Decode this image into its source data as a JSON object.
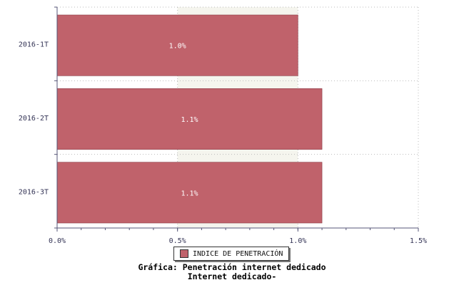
{
  "chart_data": {
    "type": "bar",
    "orientation": "horizontal",
    "categories": [
      "2016-1T",
      "2016-2T",
      "2016-3T"
    ],
    "series": [
      {
        "name": "INDICE DE PENETRACIÓN",
        "values": [
          1.0,
          1.1,
          1.1
        ],
        "color": "#c0626b"
      }
    ],
    "data_labels": [
      "1.0%",
      "1.1%",
      "1.1%"
    ],
    "x_ticks": [
      "0.0%",
      "0.5%",
      "1.0%",
      "1.5%"
    ],
    "x_tick_values": [
      0,
      0.5,
      1.0,
      1.5
    ],
    "xlim": [
      0,
      1.5
    ],
    "grid": true,
    "legend_position": "bottom-center"
  },
  "title_line1": "Gráfica: Penetración internet dedicado",
  "title_line2": "Internet dedicado-",
  "colors": {
    "bar": "#c0626b",
    "axis": "#555577",
    "grid": "#bbbbbb",
    "band": "#f5f5ee"
  }
}
